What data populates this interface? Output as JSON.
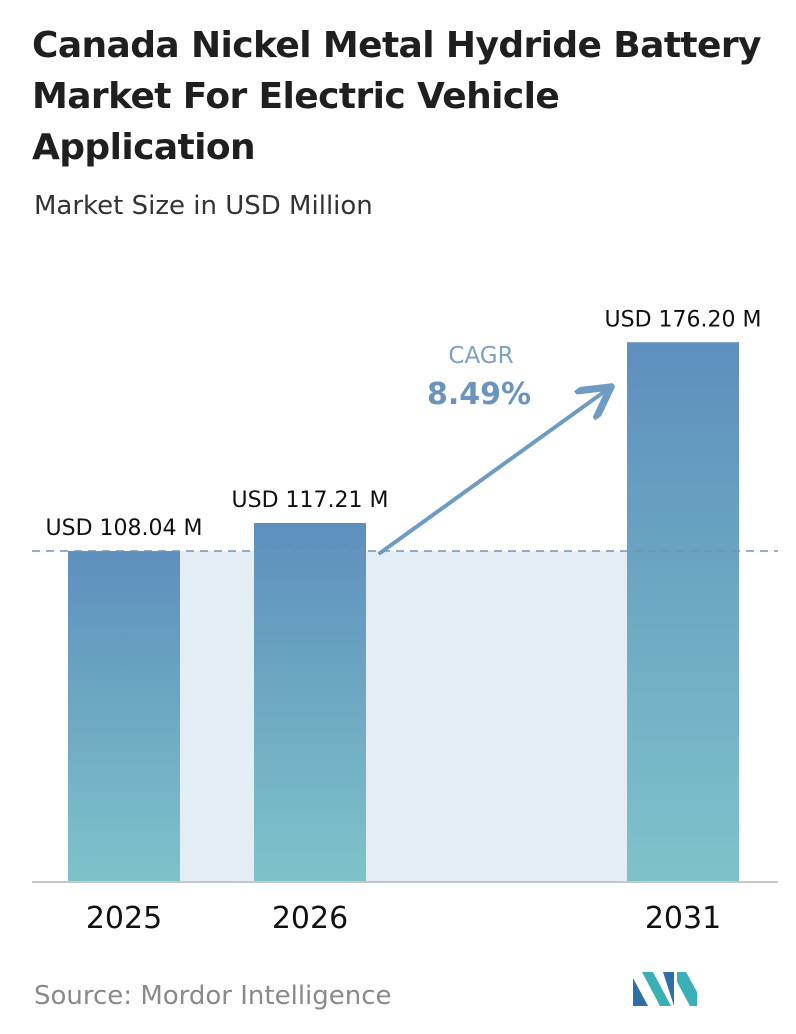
{
  "title": "Canada Nickel Metal Hydride Battery Market For Electric Vehicle Application",
  "subtitle": "Market Size in USD Million",
  "source": "Source:  Mordor Intelligence",
  "colors": {
    "bar_top": "#5e8fbd",
    "bar_bottom": "#7ec3c9",
    "band": "#e4ecf4",
    "arrow": "#6e9bc4",
    "cagr_label": "#7aa2c8",
    "cagr_value": "#6a94bd",
    "dashed_line": "#6f95b8",
    "axis": "#c7c7c7"
  },
  "chart_data": {
    "type": "bar",
    "categories": [
      "2025",
      "2026",
      "2031"
    ],
    "values": [
      108.04,
      117.21,
      176.2
    ],
    "data_labels": [
      "USD 108.04 M",
      "USD 117.21 M",
      "USD 176.20 M"
    ],
    "ylim": [
      0,
      190
    ],
    "grid": false,
    "legend": "none",
    "annotation": {
      "label": "CAGR",
      "value": "8.49%"
    }
  }
}
